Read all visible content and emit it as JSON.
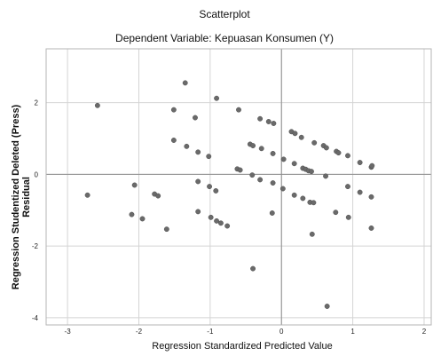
{
  "chart_data": {
    "type": "scatter",
    "title": "Scatterplot",
    "subtitle": "Dependent Variable: Kepuasan Konsumen (Y)",
    "xlabel": "Regression Standardized Predicted Value",
    "ylabel": [
      "Regression Studentized Deleted (Press)",
      "Residual"
    ],
    "xlim": [
      -3.3,
      2.1
    ],
    "ylim": [
      -4.2,
      3.5
    ],
    "x_ticks": [
      -3,
      -2,
      -1,
      0,
      1,
      2
    ],
    "y_ticks": [
      2,
      0,
      -2,
      -4
    ],
    "x_tick_labels": [
      "-3",
      "-2",
      "-1",
      "0",
      "1",
      "2"
    ],
    "y_tick_labels": [
      "2",
      "0",
      "-2",
      "-4"
    ],
    "reference_lines": {
      "x": 0,
      "y": 0
    },
    "grid": true,
    "point_color": "#6a6a6a",
    "points": [
      [
        -2.58,
        1.92
      ],
      [
        -2.72,
        -0.58
      ],
      [
        -2.06,
        -0.3
      ],
      [
        -2.1,
        -1.12
      ],
      [
        -1.95,
        -1.24
      ],
      [
        -1.78,
        -0.55
      ],
      [
        -1.73,
        -0.6
      ],
      [
        -1.61,
        -1.53
      ],
      [
        -1.35,
        2.55
      ],
      [
        -1.51,
        1.8
      ],
      [
        -1.51,
        0.95
      ],
      [
        -1.33,
        0.78
      ],
      [
        -1.21,
        1.58
      ],
      [
        -1.17,
        0.62
      ],
      [
        -1.17,
        -0.2
      ],
      [
        -1.17,
        -1.04
      ],
      [
        -1.02,
        0.5
      ],
      [
        -1.01,
        -0.34
      ],
      [
        -0.99,
        -1.2
      ],
      [
        -0.91,
        2.12
      ],
      [
        -0.92,
        -0.46
      ],
      [
        -0.91,
        -1.3
      ],
      [
        -0.85,
        -1.36
      ],
      [
        -0.76,
        -1.44
      ],
      [
        -0.6,
        1.8
      ],
      [
        -0.62,
        0.15
      ],
      [
        -0.58,
        0.12
      ],
      [
        -0.44,
        0.84
      ],
      [
        -0.4,
        0.8
      ],
      [
        -0.41,
        -0.02
      ],
      [
        -0.4,
        -2.63
      ],
      [
        -0.3,
        1.55
      ],
      [
        -0.3,
        -0.15
      ],
      [
        -0.28,
        0.72
      ],
      [
        -0.18,
        1.47
      ],
      [
        -0.11,
        1.42
      ],
      [
        -0.12,
        0.58
      ],
      [
        -0.12,
        -0.24
      ],
      [
        -0.13,
        -1.08
      ],
      [
        0.03,
        0.42
      ],
      [
        0.02,
        -0.4
      ],
      [
        0.14,
        1.19
      ],
      [
        0.19,
        1.14
      ],
      [
        0.18,
        0.3
      ],
      [
        0.18,
        -0.58
      ],
      [
        0.28,
        1.03
      ],
      [
        0.3,
        0.17
      ],
      [
        0.34,
        0.14
      ],
      [
        0.3,
        -0.67
      ],
      [
        0.38,
        0.1
      ],
      [
        0.4,
        -0.78
      ],
      [
        0.42,
        0.08
      ],
      [
        0.45,
        -0.79
      ],
      [
        0.43,
        -1.67
      ],
      [
        0.46,
        0.88
      ],
      [
        0.59,
        0.8
      ],
      [
        0.63,
        0.74
      ],
      [
        0.62,
        -0.05
      ],
      [
        0.64,
        -3.68
      ],
      [
        0.77,
        0.64
      ],
      [
        0.8,
        0.6
      ],
      [
        0.76,
        -1.06
      ],
      [
        0.93,
        0.52
      ],
      [
        0.93,
        -0.34
      ],
      [
        0.94,
        -1.2
      ],
      [
        1.1,
        0.33
      ],
      [
        1.1,
        -0.5
      ],
      [
        1.26,
        0.2
      ],
      [
        1.27,
        0.24
      ],
      [
        1.26,
        -0.63
      ],
      [
        1.26,
        -1.5
      ]
    ]
  }
}
